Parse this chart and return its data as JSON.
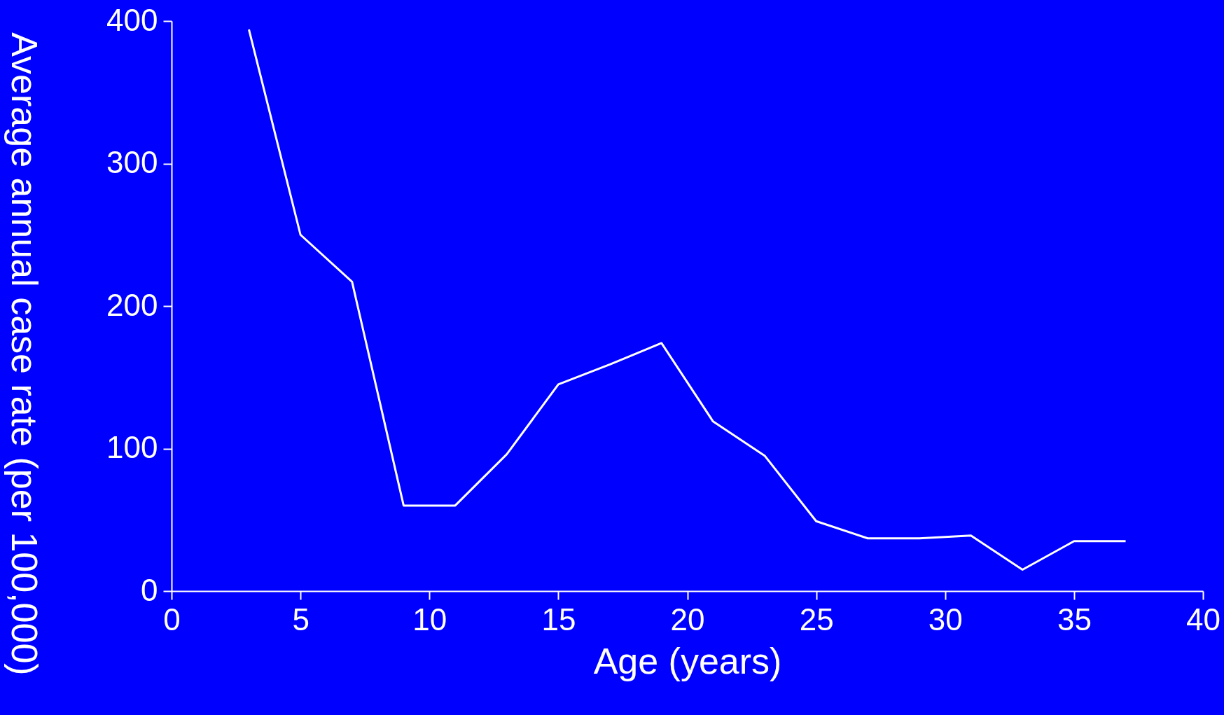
{
  "chart_data": {
    "type": "line",
    "xlabel": "Age (years)",
    "ylabel": "Average annual case rate (per 100,000)",
    "x": [
      3,
      5,
      7,
      9,
      11,
      13,
      15,
      17,
      19,
      21,
      23,
      25,
      27,
      29,
      31,
      33,
      35,
      37
    ],
    "series": [
      {
        "color": "#ffffff",
        "values": [
          394,
          250,
          217,
          60,
          60,
          96,
          145,
          159,
          174,
          119,
          95,
          49,
          37,
          37,
          39,
          15,
          35,
          35
        ]
      }
    ],
    "xlim": [
      0,
      40
    ],
    "xticks": [
      0,
      5,
      10,
      15,
      20,
      25,
      30,
      35,
      40
    ],
    "ylim": [
      0,
      400
    ],
    "yticks": [
      0,
      100,
      200,
      300,
      400
    ],
    "grid": false,
    "marker": "none",
    "line_style": "solid"
  }
}
